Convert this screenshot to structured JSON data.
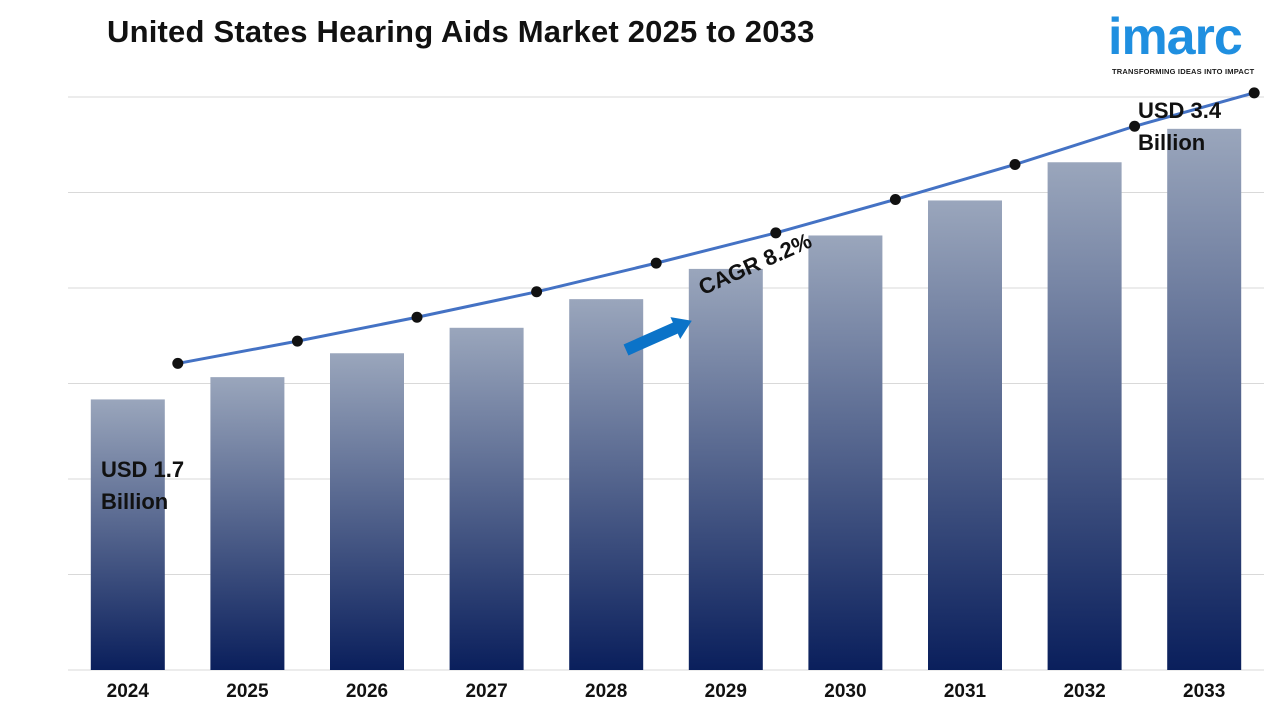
{
  "title": "United States Hearing Aids Market 2025 to 2033",
  "logo": {
    "wordmark": "imarc",
    "tagline": "TRANSFORMING IDEAS INTO IMPACT",
    "color": "#1f8fe0"
  },
  "annotations": {
    "start_line1": "USD 1.7",
    "start_line2": "Billion",
    "end_line1": "USD 3.4",
    "end_line2": "Billion",
    "cagr": "CAGR 8.2%"
  },
  "colors": {
    "bar_top": "#9aa6bc",
    "bar_bottom": "#0a1f5c",
    "line": "#4472c4",
    "marker": "#111111",
    "arrow": "#0b73c8",
    "grid": "#d9d9d9"
  },
  "chart_data": {
    "type": "bar",
    "title": "United States Hearing Aids Market 2025 to 2033",
    "categories": [
      "2024",
      "2025",
      "2026",
      "2027",
      "2028",
      "2029",
      "2030",
      "2031",
      "2032",
      "2033"
    ],
    "values": [
      1.7,
      1.84,
      1.99,
      2.15,
      2.33,
      2.52,
      2.73,
      2.95,
      3.19,
      3.4
    ],
    "series": [
      {
        "values": [
          1.7,
          1.84,
          1.99,
          2.15,
          2.33,
          2.52,
          2.73,
          2.95,
          3.19,
          3.4
        ]
      }
    ],
    "overlay": "line with markers tracing the same values",
    "xlabel": "",
    "ylabel": "",
    "ylim": [
      0,
      3.6
    ],
    "grid": true,
    "legend": "none"
  }
}
